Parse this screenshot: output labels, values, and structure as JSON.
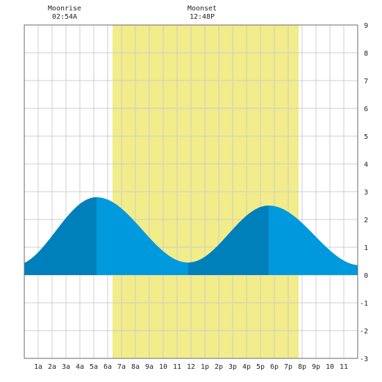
{
  "chart_data": {
    "type": "area",
    "title": "",
    "xlabel": "",
    "ylabel": "",
    "x_range_hours": [
      0,
      24
    ],
    "ylim": [
      -3,
      9
    ],
    "y_ticks": [
      "-3",
      "-2",
      "-1",
      "0",
      "1",
      "2",
      "3",
      "4",
      "5",
      "6",
      "7",
      "8",
      "9"
    ],
    "x_ticks": [
      {
        "hour": 1,
        "label": "1a"
      },
      {
        "hour": 2,
        "label": "2a"
      },
      {
        "hour": 3,
        "label": "3a"
      },
      {
        "hour": 4,
        "label": "4a"
      },
      {
        "hour": 5,
        "label": "5a"
      },
      {
        "hour": 6,
        "label": "6a"
      },
      {
        "hour": 7,
        "label": "7a"
      },
      {
        "hour": 8,
        "label": "8a"
      },
      {
        "hour": 9,
        "label": "9a"
      },
      {
        "hour": 10,
        "label": "10"
      },
      {
        "hour": 11,
        "label": "11"
      },
      {
        "hour": 12,
        "label": "12"
      },
      {
        "hour": 13,
        "label": "1p"
      },
      {
        "hour": 14,
        "label": "2p"
      },
      {
        "hour": 15,
        "label": "3p"
      },
      {
        "hour": 16,
        "label": "4p"
      },
      {
        "hour": 17,
        "label": "5p"
      },
      {
        "hour": 18,
        "label": "6p"
      },
      {
        "hour": 19,
        "label": "7p"
      },
      {
        "hour": 20,
        "label": "8p"
      },
      {
        "hour": 21,
        "label": "9p"
      },
      {
        "hour": 22,
        "label": "10"
      },
      {
        "hour": 23,
        "label": "11"
      }
    ],
    "daylight": {
      "start_hour": 6.35,
      "end_hour": 19.75,
      "color": "#f2ec8a"
    },
    "tide_extremes": [
      {
        "hour": 5.2,
        "height": 2.8,
        "type": "high"
      },
      {
        "hour": 11.8,
        "height": 0.45,
        "type": "low"
      },
      {
        "hour": 17.6,
        "height": 2.5,
        "type": "high"
      },
      {
        "hour": 24.2,
        "height": 0.35,
        "type": "low"
      },
      {
        "hour": -0.7,
        "height": 0.35,
        "type": "low"
      }
    ],
    "rising_segments": [
      [
        0,
        5.2
      ],
      [
        11.8,
        17.6
      ]
    ],
    "colors": {
      "falling": "#0099dd",
      "rising": "#0080bb",
      "grid": "#cccccc",
      "axis": "#666666",
      "background": "#ffffff"
    },
    "grid": true,
    "moon_events": [
      {
        "label": "Moonrise",
        "time": "02:54A",
        "hour": 2.9
      },
      {
        "label": "Moonset",
        "time": "12:48P",
        "hour": 12.8
      }
    ]
  }
}
